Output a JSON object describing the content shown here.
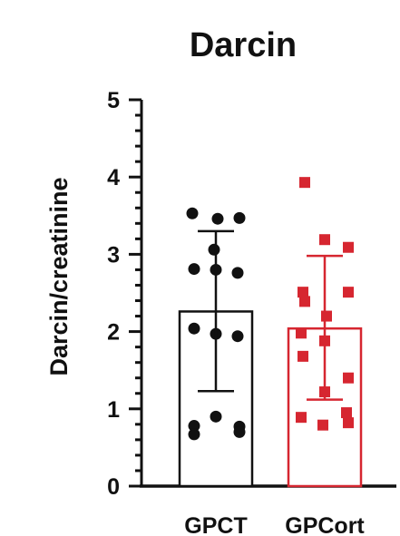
{
  "chart_data": {
    "type": "bar",
    "title": "Darcin",
    "xlabel": "",
    "ylabel": "Darcin/creatinine",
    "ylim": [
      0,
      5
    ],
    "yticks": [
      "0",
      "1",
      "2",
      "3",
      "4",
      "5"
    ],
    "categories": [
      "GPCT",
      "GPCort"
    ],
    "values": [
      2.26,
      2.04
    ],
    "error_bars": [
      {
        "low": 1.23,
        "high": 3.3
      },
      {
        "low": 1.12,
        "high": 2.98
      }
    ],
    "points": [
      [
        3.53,
        3.46,
        3.47,
        3.06,
        2.81,
        2.8,
        2.76,
        2.04,
        1.97,
        1.94,
        0.9,
        0.78,
        0.77,
        0.67,
        0.7
      ],
      [
        3.93,
        3.19,
        3.09,
        2.51,
        2.51,
        2.39,
        2.2,
        1.98,
        1.88,
        1.68,
        1.4,
        1.22,
        0.95,
        0.89,
        0.82,
        0.79
      ]
    ],
    "colors": {
      "GPCT": "#111111",
      "GPCort": "#d62630",
      "axis": "#111111"
    },
    "markers": {
      "GPCT": "circle",
      "GPCort": "square"
    }
  }
}
